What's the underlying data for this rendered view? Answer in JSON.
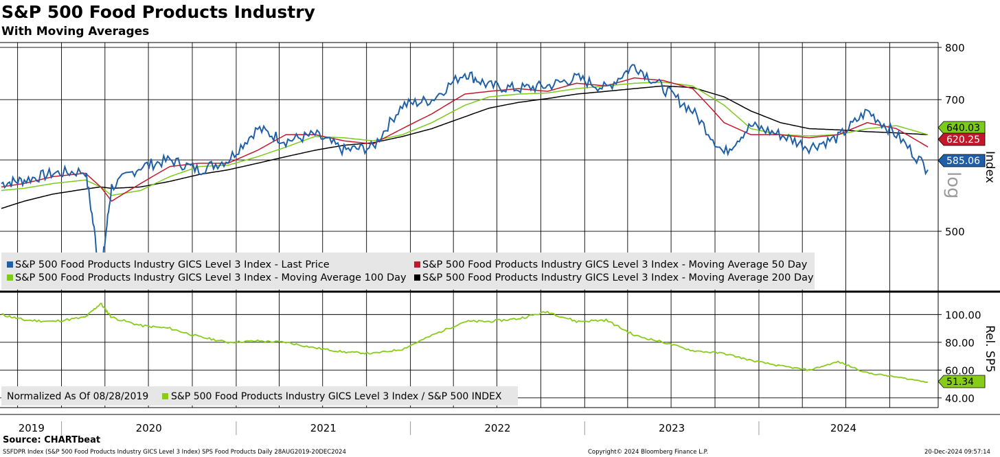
{
  "header": {
    "title": "S&P 500 Food Products Industry",
    "subtitle": "With Moving Averages"
  },
  "footer": {
    "source": "Source: CHARTbeat",
    "description": "SSFDPR Index (S&P 500 Food Products Industry GICS Level 3 Index) SPS Food Products  Daily 28AUG2019-20DEC2024",
    "copyright": "Copyright© 2024 Bloomberg Finance L.P.",
    "timestamp": "20-Dec-2024 09:57:14"
  },
  "colors": {
    "last_price": "#1f5fa8",
    "ma50": "#c3182b",
    "ma100": "#7ccb1a",
    "ma200": "#000000",
    "relative": "#88cc1a",
    "legend_bg": "#e6e6e6"
  },
  "chart_data": [
    {
      "type": "line",
      "ylabel": "Index",
      "scale": "log",
      "ylim": [
        430,
        810
      ],
      "yticks": [
        500,
        600,
        700,
        800
      ],
      "grid": true,
      "legend_position": "bottom-left",
      "x": [
        "2019-08-28",
        "2019-10-15",
        "2019-12-15",
        "2020-02-20",
        "2020-03-23",
        "2020-04-15",
        "2020-06-15",
        "2020-08-15",
        "2020-10-15",
        "2020-12-15",
        "2021-02-15",
        "2021-04-15",
        "2021-06-15",
        "2021-08-15",
        "2021-10-15",
        "2021-12-15",
        "2022-02-15",
        "2022-04-25",
        "2022-06-15",
        "2022-08-15",
        "2022-10-15",
        "2022-12-15",
        "2023-02-15",
        "2023-04-15",
        "2023-06-15",
        "2023-08-15",
        "2023-10-20",
        "2023-12-15",
        "2024-02-15",
        "2024-04-15",
        "2024-06-15",
        "2024-08-15",
        "2024-10-15",
        "2024-12-20"
      ],
      "series": [
        {
          "name": "S&P 500 Food Products Industry GICS Level 3 Index - Last Price",
          "values": [
            565,
            570,
            580,
            583,
            440,
            560,
            590,
            600,
            585,
            600,
            650,
            630,
            640,
            615,
            620,
            690,
            700,
            750,
            725,
            720,
            725,
            740,
            720,
            765,
            720,
            680,
            610,
            655,
            640,
            620,
            635,
            680,
            640,
            585.06
          ]
        },
        {
          "name": "S&P 500 Food Products Industry GICS Level 3 Index - Moving Average 50 Day",
          "values": [
            560,
            565,
            575,
            580,
            560,
            540,
            565,
            590,
            595,
            595,
            615,
            640,
            640,
            630,
            625,
            650,
            675,
            710,
            715,
            720,
            715,
            730,
            725,
            740,
            735,
            720,
            660,
            640,
            640,
            635,
            640,
            660,
            650,
            620.25
          ]
        },
        {
          "name": "S&P 500 Food Products Industry GICS Level 3 Index - Moving Average 100 Day",
          "values": [
            555,
            558,
            565,
            570,
            560,
            548,
            555,
            575,
            590,
            592,
            605,
            620,
            637,
            635,
            630,
            640,
            660,
            690,
            705,
            710,
            712,
            720,
            725,
            730,
            732,
            725,
            690,
            650,
            640,
            638,
            640,
            650,
            655,
            640.03
          ]
        },
        {
          "name": "S&P 500 Food Products Industry GICS Level 3 Index - Moving Average 200 Day",
          "values": [
            530,
            540,
            550,
            557,
            560,
            558,
            560,
            568,
            578,
            585,
            595,
            605,
            615,
            623,
            627,
            637,
            650,
            670,
            685,
            695,
            702,
            710,
            715,
            720,
            725,
            722,
            705,
            680,
            660,
            650,
            648,
            645,
            643,
            640
          ]
        }
      ],
      "last_value_labels": [
        "640.03",
        "620.25",
        "585.06"
      ]
    },
    {
      "type": "line",
      "ylabel": "Rel. SP5",
      "ylim": [
        33,
        115
      ],
      "yticks": [
        40,
        60,
        80,
        100
      ],
      "ytick_labels": [
        "40.00",
        "60.00",
        "80.00",
        "100.00"
      ],
      "grid": true,
      "legend_position": "bottom-left",
      "legend_prefix": "Normalized As Of 08/28/2019",
      "x": [
        "2019-08-28",
        "2019-10-15",
        "2019-12-15",
        "2020-02-20",
        "2020-03-23",
        "2020-04-15",
        "2020-06-15",
        "2020-08-15",
        "2020-10-15",
        "2020-12-15",
        "2021-02-15",
        "2021-04-15",
        "2021-06-15",
        "2021-08-15",
        "2021-10-15",
        "2021-12-15",
        "2022-02-15",
        "2022-04-25",
        "2022-06-15",
        "2022-08-15",
        "2022-10-15",
        "2022-12-15",
        "2023-02-15",
        "2023-04-15",
        "2023-06-15",
        "2023-08-15",
        "2023-10-20",
        "2023-12-15",
        "2024-02-15",
        "2024-04-15",
        "2024-06-15",
        "2024-08-15",
        "2024-10-15",
        "2024-12-20"
      ],
      "series": [
        {
          "name": "S&P 500 Food Products Industry GICS Level 3 Index / S&P 500 INDEX",
          "values": [
            100,
            96,
            95,
            98,
            108,
            98,
            92,
            90,
            84,
            80,
            81,
            80,
            76,
            73,
            72,
            75,
            85,
            95,
            95,
            97,
            102,
            95,
            96,
            85,
            80,
            74,
            72,
            67,
            63,
            60,
            66,
            58,
            55,
            51.34
          ]
        }
      ],
      "last_value_labels": [
        "51.34"
      ]
    }
  ],
  "xaxis": {
    "years": [
      "2019",
      "2020",
      "2021",
      "2022",
      "2023",
      "2024"
    ]
  }
}
